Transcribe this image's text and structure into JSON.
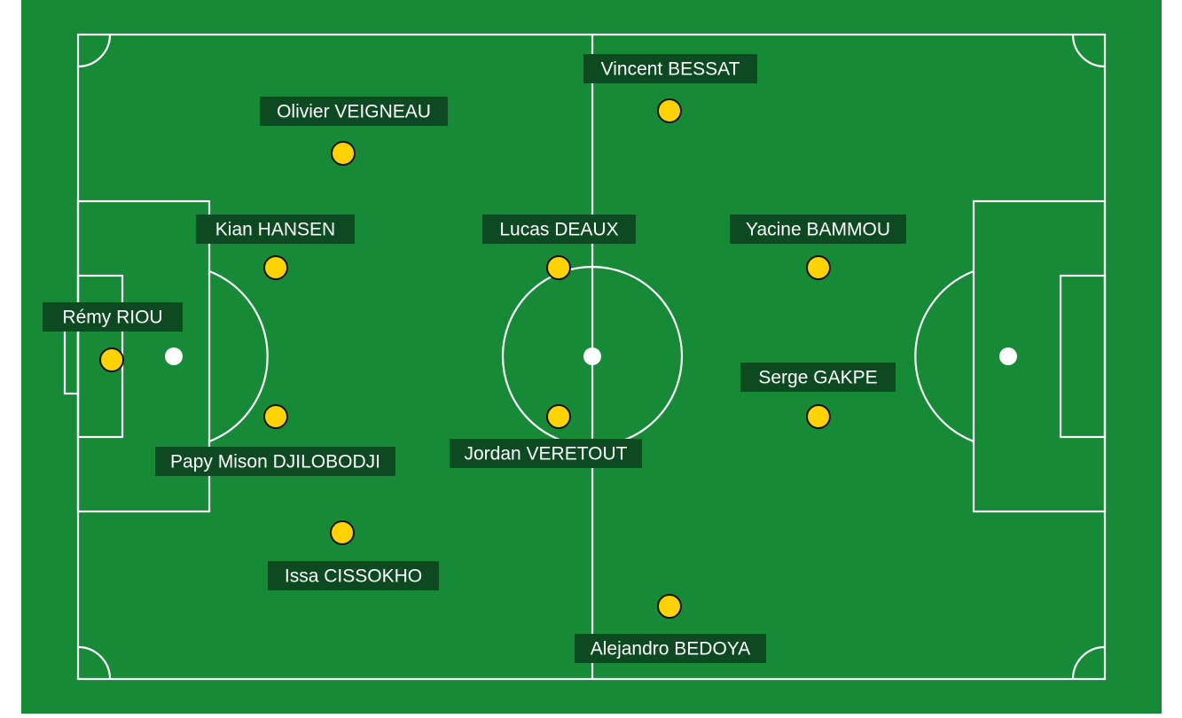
{
  "colors": {
    "grass": "#168a37",
    "line": "#ffffff",
    "label_bg": "#0d4a21",
    "label_text": "#ffffff",
    "player_fill": "#ffd200",
    "player_stroke": "#111111"
  },
  "players": [
    {
      "name": "Vincent BESSAT"
    },
    {
      "name": "Olivier VEIGNEAU"
    },
    {
      "name": "Kian HANSEN"
    },
    {
      "name": "Lucas DEAUX"
    },
    {
      "name": "Yacine BAMMOU"
    },
    {
      "name": "Rémy RIOU"
    },
    {
      "name": "Serge GAKPE"
    },
    {
      "name": "Papy Mison DJILOBODJI"
    },
    {
      "name": "Jordan VERETOUT"
    },
    {
      "name": "Issa CISSOKHO"
    },
    {
      "name": "Alejandro BEDOYA"
    }
  ]
}
